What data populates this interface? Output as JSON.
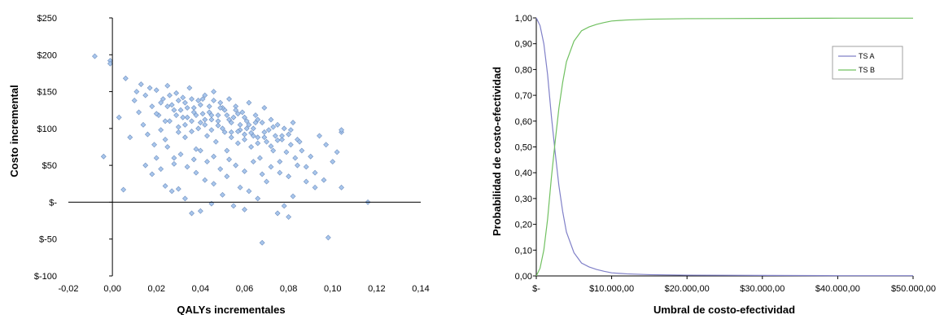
{
  "chart_data": [
    {
      "type": "scatter",
      "title": "",
      "xlabel": "QALYs incrementales",
      "ylabel": "Costo incremental",
      "xlim": [
        -0.02,
        0.14
      ],
      "ylim": [
        -100,
        250
      ],
      "x_ticks": [
        "-0,02",
        "0,00",
        "0,02",
        "0,04",
        "0,06",
        "0,08",
        "0,10",
        "0,12",
        "0,14"
      ],
      "y_ticks": [
        "$-100",
        "$-50",
        "$-",
        "$50",
        "$100",
        "$150",
        "$200",
        "$250"
      ],
      "marker_color": "#a8c6ec",
      "marker_edge": "#6f8fbf",
      "points": [
        [
          -0.008,
          198
        ],
        [
          -0.001,
          192
        ],
        [
          -0.001,
          188
        ],
        [
          0.006,
          168
        ],
        [
          -0.004,
          62
        ],
        [
          0.003,
          115
        ],
        [
          0.005,
          17
        ],
        [
          0.008,
          88
        ],
        [
          0.01,
          138
        ],
        [
          0.011,
          150
        ],
        [
          0.012,
          122
        ],
        [
          0.013,
          160
        ],
        [
          0.014,
          105
        ],
        [
          0.015,
          145
        ],
        [
          0.016,
          92
        ],
        [
          0.017,
          155
        ],
        [
          0.018,
          130
        ],
        [
          0.019,
          78
        ],
        [
          0.02,
          152
        ],
        [
          0.021,
          118
        ],
        [
          0.022,
          98
        ],
        [
          0.023,
          140
        ],
        [
          0.024,
          85
        ],
        [
          0.025,
          158
        ],
        [
          0.026,
          110
        ],
        [
          0.027,
          132
        ],
        [
          0.028,
          60
        ],
        [
          0.029,
          148
        ],
        [
          0.03,
          102
        ],
        [
          0.031,
          125
        ],
        [
          0.032,
          142
        ],
        [
          0.033,
          88
        ],
        [
          0.034,
          115
        ],
        [
          0.035,
          155
        ],
        [
          0.036,
          96
        ],
        [
          0.037,
          128
        ],
        [
          0.038,
          72
        ],
        [
          0.039,
          138
        ],
        [
          0.04,
          108
        ],
        [
          0.041,
          120
        ],
        [
          0.042,
          145
        ],
        [
          0.043,
          90
        ],
        [
          0.044,
          130
        ],
        [
          0.045,
          112
        ],
        [
          0.046,
          150
        ],
        [
          0.047,
          82
        ],
        [
          0.048,
          118
        ],
        [
          0.049,
          135
        ],
        [
          0.05,
          100
        ],
        [
          0.051,
          125
        ],
        [
          0.052,
          70
        ],
        [
          0.053,
          140
        ],
        [
          0.054,
          95
        ],
        [
          0.055,
          115
        ],
        [
          0.056,
          130
        ],
        [
          0.057,
          80
        ],
        [
          0.058,
          105
        ],
        [
          0.059,
          122
        ],
        [
          0.06,
          92
        ],
        [
          0.061,
          110
        ],
        [
          0.062,
          135
        ],
        [
          0.063,
          75
        ],
        [
          0.064,
          100
        ],
        [
          0.065,
          118
        ],
        [
          0.066,
          88
        ],
        [
          0.067,
          60
        ],
        [
          0.068,
          108
        ],
        [
          0.069,
          128
        ],
        [
          0.07,
          82
        ],
        [
          0.071,
          98
        ],
        [
          0.072,
          112
        ],
        [
          0.073,
          70
        ],
        [
          0.074,
          90
        ],
        [
          0.075,
          105
        ],
        [
          0.076,
          55
        ],
        [
          0.077,
          85
        ],
        [
          0.078,
          100
        ],
        [
          0.079,
          68
        ],
        [
          0.08,
          92
        ],
        [
          0.081,
          78
        ],
        [
          0.082,
          108
        ],
        [
          0.083,
          60
        ],
        [
          0.084,
          85
        ],
        [
          0.086,
          70
        ],
        [
          0.088,
          48
        ],
        [
          0.09,
          62
        ],
        [
          0.092,
          40
        ],
        [
          0.094,
          90
        ],
        [
          0.096,
          30
        ],
        [
          0.097,
          78
        ],
        [
          0.098,
          -48
        ],
        [
          0.1,
          55
        ],
        [
          0.102,
          68
        ],
        [
          0.104,
          95
        ],
        [
          0.104,
          20
        ],
        [
          0.104,
          98
        ],
        [
          0.116,
          0
        ],
        [
          0.068,
          -55
        ],
        [
          0.075,
          -15
        ],
        [
          0.078,
          -5
        ],
        [
          0.08,
          -20
        ],
        [
          0.082,
          8
        ],
        [
          0.06,
          -10
        ],
        [
          0.055,
          -5
        ],
        [
          0.05,
          10
        ],
        [
          0.045,
          -2
        ],
        [
          0.04,
          -12
        ],
        [
          0.036,
          -15
        ],
        [
          0.033,
          5
        ],
        [
          0.03,
          18
        ],
        [
          0.027,
          15
        ],
        [
          0.024,
          22
        ],
        [
          0.038,
          40
        ],
        [
          0.042,
          30
        ],
        [
          0.046,
          25
        ],
        [
          0.052,
          35
        ],
        [
          0.058,
          20
        ],
        [
          0.062,
          15
        ],
        [
          0.066,
          5
        ],
        [
          0.07,
          28
        ],
        [
          0.015,
          50
        ],
        [
          0.018,
          38
        ],
        [
          0.02,
          60
        ],
        [
          0.022,
          45
        ],
        [
          0.025,
          75
        ],
        [
          0.028,
          52
        ],
        [
          0.031,
          65
        ],
        [
          0.034,
          48
        ],
        [
          0.037,
          58
        ],
        [
          0.04,
          70
        ],
        [
          0.043,
          55
        ],
        [
          0.046,
          62
        ],
        [
          0.049,
          45
        ],
        [
          0.053,
          58
        ],
        [
          0.056,
          50
        ],
        [
          0.06,
          42
        ],
        [
          0.064,
          55
        ],
        [
          0.068,
          38
        ],
        [
          0.072,
          48
        ],
        [
          0.076,
          40
        ],
        [
          0.08,
          35
        ],
        [
          0.084,
          50
        ],
        [
          0.088,
          28
        ],
        [
          0.092,
          20
        ],
        [
          0.02,
          120
        ],
        [
          0.022,
          135
        ],
        [
          0.024,
          110
        ],
        [
          0.026,
          145
        ],
        [
          0.028,
          125
        ],
        [
          0.03,
          138
        ],
        [
          0.032,
          115
        ],
        [
          0.034,
          128
        ],
        [
          0.036,
          140
        ],
        [
          0.038,
          118
        ],
        [
          0.04,
          132
        ],
        [
          0.042,
          105
        ],
        [
          0.044,
          122
        ],
        [
          0.046,
          138
        ],
        [
          0.048,
          110
        ],
        [
          0.05,
          128
        ],
        [
          0.052,
          118
        ],
        [
          0.054,
          108
        ],
        [
          0.056,
          125
        ],
        [
          0.058,
          98
        ],
        [
          0.06,
          115
        ],
        [
          0.062,
          105
        ],
        [
          0.064,
          90
        ],
        [
          0.066,
          112
        ],
        [
          0.03,
          95
        ],
        [
          0.033,
          105
        ],
        [
          0.036,
          110
        ],
        [
          0.039,
          100
        ],
        [
          0.042,
          112
        ],
        [
          0.045,
          98
        ],
        [
          0.048,
          104
        ],
        [
          0.051,
          95
        ],
        [
          0.054,
          88
        ],
        [
          0.057,
          96
        ],
        [
          0.06,
          85
        ],
        [
          0.063,
          94
        ],
        [
          0.066,
          80
        ],
        [
          0.069,
          88
        ],
        [
          0.072,
          76
        ],
        [
          0.075,
          84
        ],
        [
          0.025,
          130
        ],
        [
          0.029,
          118
        ],
        [
          0.033,
          135
        ],
        [
          0.037,
          122
        ],
        [
          0.041,
          140
        ],
        [
          0.045,
          118
        ],
        [
          0.049,
          128
        ],
        [
          0.053,
          112
        ],
        [
          0.057,
          120
        ],
        [
          0.061,
          100
        ],
        [
          0.065,
          108
        ],
        [
          0.069,
          95
        ],
        [
          0.073,
          102
        ],
        [
          0.077,
          90
        ],
        [
          0.081,
          98
        ],
        [
          0.085,
          82
        ]
      ]
    },
    {
      "type": "line",
      "title": "",
      "xlabel": "Umbral de costo-efectividad",
      "ylabel": "Probabilidad de  costo-efectividad",
      "xlim": [
        0,
        50000
      ],
      "ylim": [
        0,
        1
      ],
      "x_ticks": [
        "$-",
        "$10.000,00",
        "$20.000,00",
        "$30.000,00",
        "$40.000,00",
        "$50.000,00"
      ],
      "y_ticks": [
        "0,00",
        "0,10",
        "0,20",
        "0,30",
        "0,40",
        "0,50",
        "0,60",
        "0,70",
        "0,80",
        "0,90",
        "1,00"
      ],
      "legend_position": "top-right",
      "x": [
        0,
        500,
        1000,
        1500,
        2000,
        2500,
        3000,
        3500,
        4000,
        5000,
        6000,
        7000,
        8000,
        9000,
        10000,
        12000,
        15000,
        20000,
        30000,
        40000,
        50000
      ],
      "series": [
        {
          "name": "TS A",
          "color": "#8080c8",
          "values": [
            1.0,
            0.97,
            0.9,
            0.78,
            0.62,
            0.48,
            0.35,
            0.25,
            0.17,
            0.09,
            0.05,
            0.035,
            0.025,
            0.018,
            0.012,
            0.008,
            0.005,
            0.003,
            0.002,
            0.001,
            0.001
          ]
        },
        {
          "name": "TS B",
          "color": "#70c060",
          "values": [
            0.0,
            0.03,
            0.1,
            0.22,
            0.38,
            0.52,
            0.65,
            0.75,
            0.83,
            0.91,
            0.95,
            0.965,
            0.975,
            0.982,
            0.988,
            0.992,
            0.995,
            0.997,
            0.998,
            0.999,
            0.999
          ]
        }
      ]
    }
  ]
}
